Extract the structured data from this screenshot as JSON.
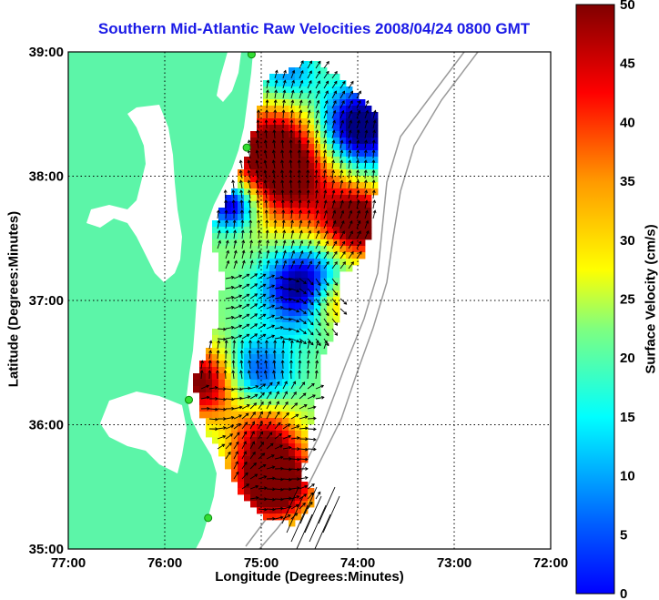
{
  "title": "Southern Mid-Atlantic Raw Velocities 2008/04/24 0800 GMT",
  "xlabel": "Longitude (Degrees:Minutes)",
  "ylabel": "Latitude (Degrees:Minutes)",
  "colorbar_label": "Surface Velocity (cm/s)",
  "x_ticks": [
    "77:00",
    "76:00",
    "75:00",
    "74:00",
    "73:00",
    "72:00"
  ],
  "y_ticks": [
    "39:00",
    "38:00",
    "37:00",
    "36:00",
    "35:00"
  ],
  "colorbar_ticks": [
    "50",
    "45",
    "40",
    "35",
    "30",
    "25",
    "20",
    "15",
    "10",
    "5",
    "0"
  ],
  "colors": {
    "land": "#5cf5a8",
    "title": "#1a1ae6",
    "station": "#33dd33"
  },
  "chart_data": {
    "type": "heatmap",
    "xlim": [
      -77,
      -72
    ],
    "ylim": [
      35,
      39
    ],
    "clim": [
      0,
      50
    ],
    "colormap": "jet",
    "grid": true,
    "stations": [
      {
        "lon": -75.1,
        "lat": 38.98
      },
      {
        "lon": -75.15,
        "lat": 38.23
      },
      {
        "lon": -75.75,
        "lat": 36.2
      },
      {
        "lon": -75.55,
        "lat": 35.25
      }
    ]
  }
}
